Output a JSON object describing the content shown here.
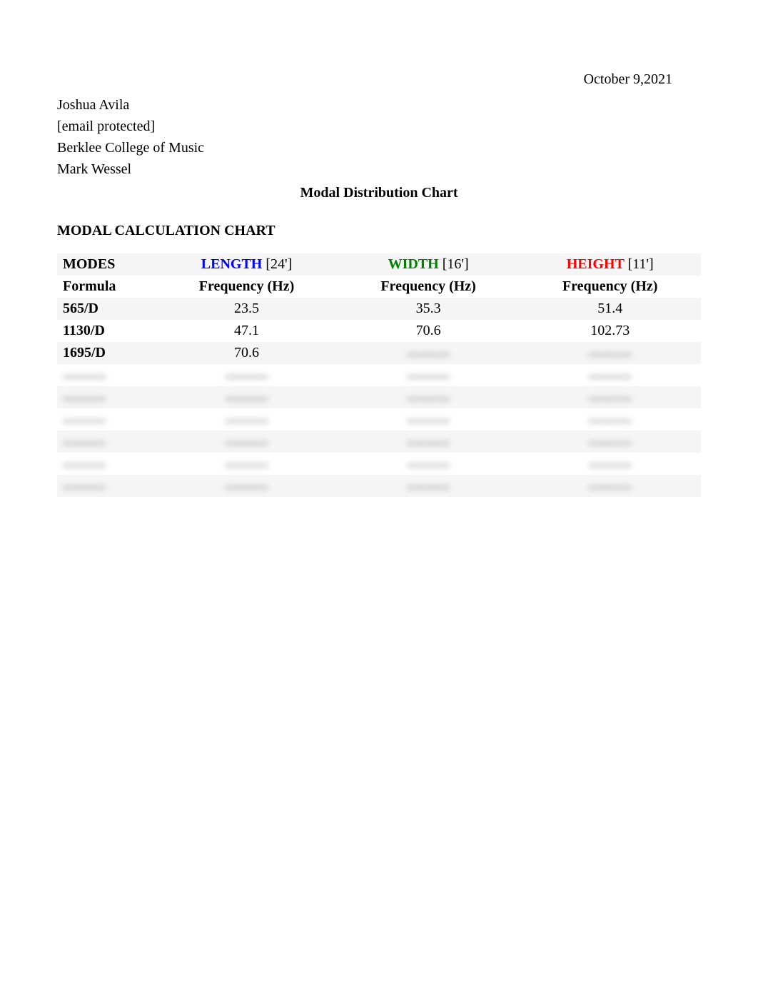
{
  "date": "October 9,2021",
  "author": {
    "name": "Joshua Avila",
    "email": "[email protected]",
    "institution": "Berklee College of Music",
    "instructor": "Mark Wessel"
  },
  "doc_title": "Modal Distribution Chart",
  "section_header": "MODAL CALCULATION CHART",
  "table": {
    "modes_label": "MODES",
    "formula_label": "Formula",
    "dimensions": {
      "length": {
        "label": "LENGTH",
        "value": "[24']",
        "color": "#0000ff"
      },
      "width": {
        "label": "WIDTH",
        "value": "[16']",
        "color": "#008000"
      },
      "height": {
        "label": "HEIGHT",
        "value": "[11']",
        "color": "#ff0000"
      }
    },
    "freq_label": "Frequency (Hz)",
    "rows": [
      {
        "formula": "565/D",
        "length": "23.5",
        "width": "35.3",
        "height": "51.4"
      },
      {
        "formula": "1130/D",
        "length": "47.1",
        "width": "70.6",
        "height": "102.73"
      },
      {
        "formula": "1695/D",
        "length": "70.6",
        "width": "",
        "height": ""
      }
    ],
    "blurred_rows": [
      {
        "formula": "▬▬▬",
        "length": "▬▬",
        "width": "▬▬▬",
        "height": "▬▬▬"
      },
      {
        "formula": "▬▬▬",
        "length": "▬▬▬",
        "width": "▬▬▬",
        "height": "▬▬▬"
      },
      {
        "formula": "▬▬▬",
        "length": "▬▬▬",
        "width": "▬▬▬",
        "height": "▬▬▬"
      },
      {
        "formula": "▬▬▬",
        "length": "▬▬▬",
        "width": "▬▬▬",
        "height": "▬▬▬"
      },
      {
        "formula": "▬▬▬",
        "length": "▬▬▬",
        "width": "▬▬▬",
        "height": "▬▬▬"
      },
      {
        "formula": "▬▬▬",
        "length": "▬▬▬",
        "width": "▬▬▬",
        "height": "▬▬▬"
      },
      {
        "formula": "▬▬▬",
        "length": "▬▬▬",
        "width": "▬▬▬",
        "height": "▬▬▬"
      }
    ]
  },
  "colors": {
    "background": "#ffffff",
    "text": "#000000",
    "row_alt": "#f5f5f5",
    "blurred_text": "#888888"
  },
  "fonts": {
    "body_family": "Times New Roman",
    "body_size_pt": 15,
    "title_weight": "bold"
  }
}
